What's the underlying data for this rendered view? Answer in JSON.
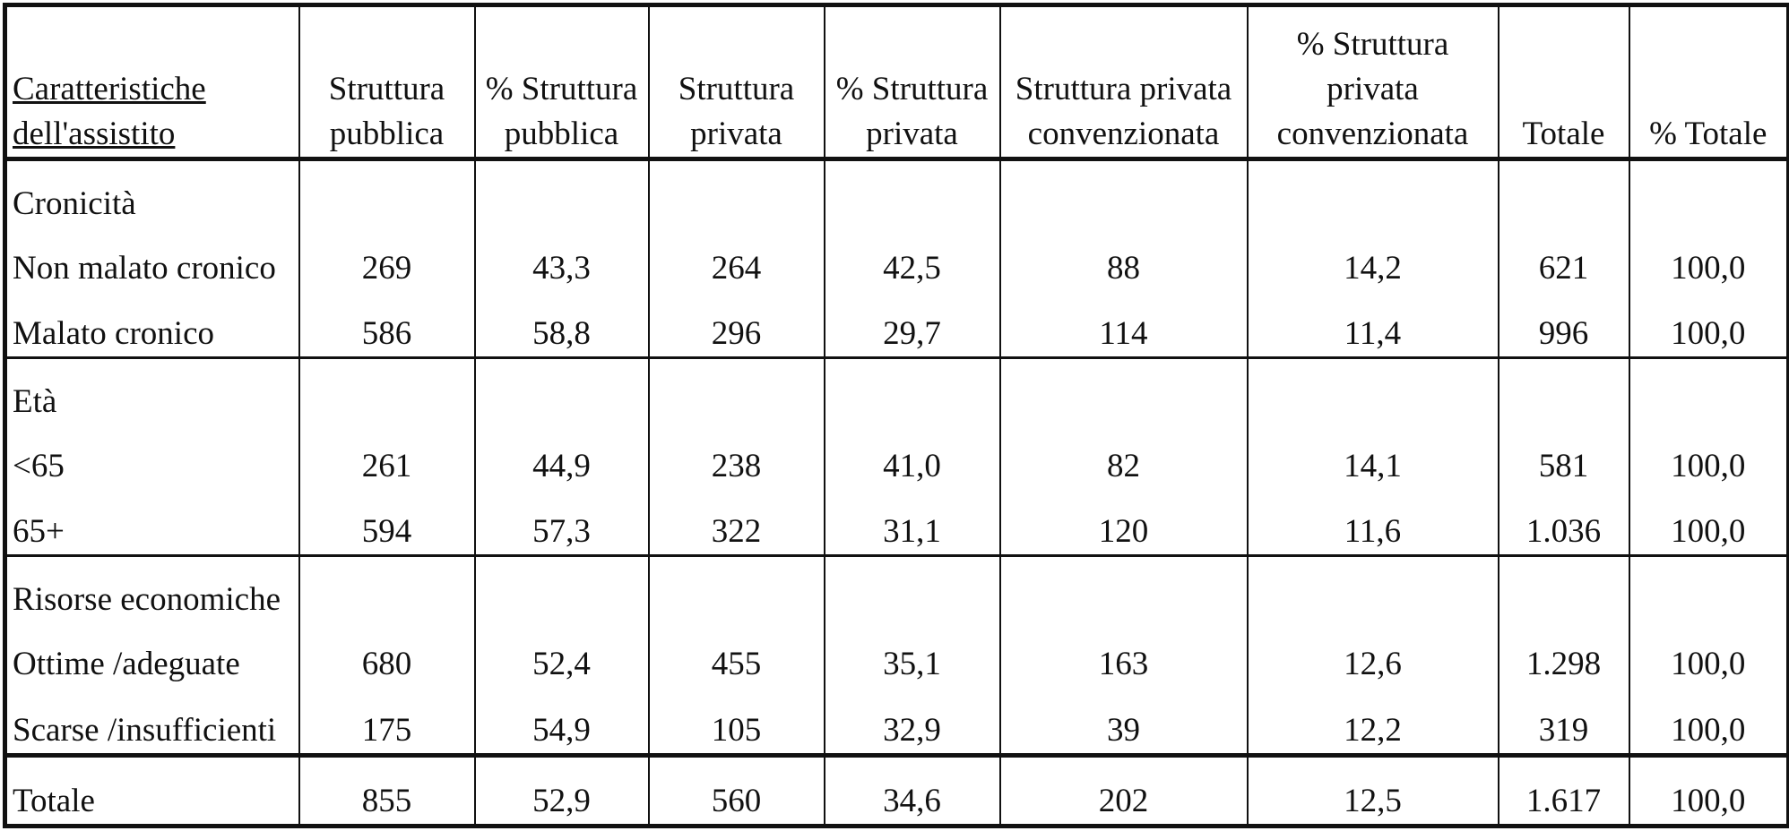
{
  "headers": [
    "Caratteristiche dell'assistito",
    "Struttura pubblica",
    "% Struttura pubblica",
    "Struttura privata",
    "% Struttura privata",
    "Struttura privata convenzionata",
    "% Struttura privata convenzionata",
    "Totale",
    "% Totale"
  ],
  "groups": [
    {
      "title": "Cronicità",
      "rows": [
        {
          "label": "Non malato cronico",
          "values": [
            "269",
            "43,3",
            "264",
            "42,5",
            "88",
            "14,2",
            "621",
            "100,0"
          ]
        },
        {
          "label": "Malato cronico",
          "values": [
            "586",
            "58,8",
            "296",
            "29,7",
            "114",
            "11,4",
            "996",
            "100,0"
          ]
        }
      ]
    },
    {
      "title": "Età",
      "rows": [
        {
          "label": "<65",
          "values": [
            "261",
            "44,9",
            "238",
            "41,0",
            "82",
            "14,1",
            "581",
            "100,0"
          ]
        },
        {
          "label": "65+",
          "values": [
            "594",
            "57,3",
            "322",
            "31,1",
            "120",
            "11,6",
            "1.036",
            "100,0"
          ]
        }
      ]
    },
    {
      "title": "Risorse economiche",
      "rows": [
        {
          "label": "Ottime /adeguate",
          "values": [
            "680",
            "52,4",
            "455",
            "35,1",
            "163",
            "12,6",
            "1.298",
            "100,0"
          ]
        },
        {
          "label": "Scarse /insufficienti",
          "values": [
            "175",
            "54,9",
            "105",
            "32,9",
            "39",
            "12,2",
            "319",
            "100,0"
          ]
        }
      ]
    }
  ],
  "total": {
    "label": "Totale",
    "values": [
      "855",
      "52,9",
      "560",
      "34,6",
      "202",
      "12,5",
      "1.617",
      "100,0"
    ]
  }
}
